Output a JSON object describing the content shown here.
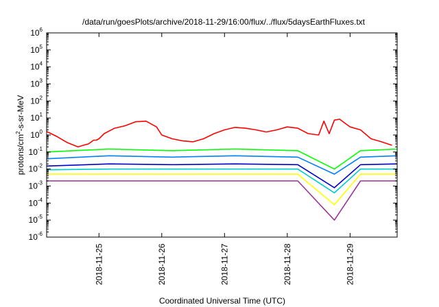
{
  "chart_data": {
    "type": "line",
    "title": "/data/run/goesPlots/archive/2018-11-29/16:00/flux/../flux/5daysEarthFluxes.txt",
    "xlabel": "Coordinated Universal Time (UTC)",
    "ylabel": {
      "prefix": "protons/cm",
      "sup": "2",
      "suffix": "-s-sr-MeV"
    },
    "y_scale": "log",
    "ylim_exponents": [
      -6,
      6
    ],
    "y_ticks": [
      {
        "base": "10",
        "exp": "-6",
        "value": -6
      },
      {
        "base": "10",
        "exp": "-5",
        "value": -5
      },
      {
        "base": "10",
        "exp": "-4",
        "value": -4
      },
      {
        "base": "10",
        "exp": "-3",
        "value": -3
      },
      {
        "base": "10",
        "exp": "-2",
        "value": -2
      },
      {
        "base": "10",
        "exp": "-1",
        "value": -1
      },
      {
        "base": "10",
        "exp": "0",
        "value": 0
      },
      {
        "base": "10",
        "exp": "1",
        "value": 1
      },
      {
        "base": "10",
        "exp": "2",
        "value": 2
      },
      {
        "base": "10",
        "exp": "3",
        "value": 3
      },
      {
        "base": "10",
        "exp": "4",
        "value": 4
      },
      {
        "base": "10",
        "exp": "5",
        "value": 5
      },
      {
        "base": "10",
        "exp": "6",
        "value": 6
      }
    ],
    "xlim": [
      "2018-11-24T04:00",
      "2018-11-29T18:00"
    ],
    "x_ticks": [
      "2018-11-25",
      "2018-11-26",
      "2018-11-27",
      "2018-11-28",
      "2018-11-29"
    ],
    "grid": false,
    "legend": "none",
    "series": [
      {
        "color": "#ff0000",
        "points": [
          [
            "2018-11-24T04:00",
            1.6
          ],
          [
            "2018-11-24T08:00",
            0.8
          ],
          [
            "2018-11-24T12:00",
            0.35
          ],
          [
            "2018-11-24T16:00",
            0.2
          ],
          [
            "2018-11-24T20:00",
            0.3
          ],
          [
            "2018-11-25T00:00",
            0.6
          ],
          [
            "2018-11-24T23:00",
            0.5
          ],
          [
            "2018-11-24T18:00",
            0.25
          ],
          [
            "2018-11-24T22:00",
            0.5
          ],
          [
            "2018-11-25T02:00",
            1.2
          ],
          [
            "2018-11-25T06:00",
            2.5
          ],
          [
            "2018-11-25T10:00",
            3.5
          ],
          [
            "2018-11-25T14:00",
            6.0
          ],
          [
            "2018-11-25T18:00",
            6.5
          ],
          [
            "2018-11-25T22:00",
            3.0
          ],
          [
            "2018-11-26T00:00",
            1.0
          ],
          [
            "2018-11-26T04:00",
            0.6
          ],
          [
            "2018-11-26T08:00",
            0.45
          ],
          [
            "2018-11-26T12:00",
            0.4
          ],
          [
            "2018-11-26T16:00",
            0.6
          ],
          [
            "2018-11-26T20:00",
            1.2
          ],
          [
            "2018-11-27T00:00",
            2.0
          ],
          [
            "2018-11-27T04:00",
            2.8
          ],
          [
            "2018-11-27T08:00",
            2.5
          ],
          [
            "2018-11-27T12:00",
            2.0
          ],
          [
            "2018-11-27T16:00",
            1.5
          ],
          [
            "2018-11-27T20:00",
            2.0
          ],
          [
            "2018-11-28T00:00",
            3.0
          ],
          [
            "2018-11-28T04:00",
            2.5
          ],
          [
            "2018-11-28T08:00",
            1.2
          ],
          [
            "2018-11-28T12:00",
            1.0
          ],
          [
            "2018-11-28T14:00",
            6.5
          ],
          [
            "2018-11-28T16:00",
            1.2
          ],
          [
            "2018-11-28T18:00",
            7.5
          ],
          [
            "2018-11-28T20:00",
            8.5
          ],
          [
            "2018-11-28T22:00",
            5.0
          ],
          [
            "2018-11-29T00:00",
            3.0
          ],
          [
            "2018-11-29T04:00",
            2.0
          ],
          [
            "2018-11-29T08:00",
            0.6
          ],
          [
            "2018-11-29T12:00",
            0.4
          ],
          [
            "2018-11-29T16:00",
            0.25
          ]
        ]
      },
      {
        "color": "#00ff00",
        "points": [
          [
            "2018-11-24T04:00",
            0.1
          ],
          [
            "2018-11-25T04:00",
            0.15
          ],
          [
            "2018-11-26T04:00",
            0.12
          ],
          [
            "2018-11-27T04:00",
            0.15
          ],
          [
            "2018-11-28T04:00",
            0.12
          ],
          [
            "2018-11-28T18:00",
            0.01
          ],
          [
            "2018-11-29T04:00",
            0.12
          ],
          [
            "2018-11-29T18:00",
            0.15
          ]
        ]
      },
      {
        "color": "#0080ff",
        "points": [
          [
            "2018-11-24T04:00",
            0.04
          ],
          [
            "2018-11-25T04:00",
            0.06
          ],
          [
            "2018-11-26T04:00",
            0.05
          ],
          [
            "2018-11-27T04:00",
            0.06
          ],
          [
            "2018-11-28T04:00",
            0.05
          ],
          [
            "2018-11-28T18:00",
            0.005
          ],
          [
            "2018-11-29T04:00",
            0.05
          ],
          [
            "2018-11-29T18:00",
            0.06
          ]
        ]
      },
      {
        "color": "#0000cc",
        "points": [
          [
            "2018-11-24T04:00",
            0.015
          ],
          [
            "2018-11-25T04:00",
            0.02
          ],
          [
            "2018-11-26T04:00",
            0.018
          ],
          [
            "2018-11-27T04:00",
            0.02
          ],
          [
            "2018-11-28T04:00",
            0.018
          ],
          [
            "2018-11-28T18:00",
            0.0008
          ],
          [
            "2018-11-29T04:00",
            0.018
          ],
          [
            "2018-11-29T18:00",
            0.02
          ]
        ]
      },
      {
        "color": "#00cccc",
        "points": [
          [
            "2018-11-24T04:00",
            0.009
          ],
          [
            "2018-11-25T04:00",
            0.01
          ],
          [
            "2018-11-26T04:00",
            0.01
          ],
          [
            "2018-11-27T04:00",
            0.01
          ],
          [
            "2018-11-28T04:00",
            0.01
          ],
          [
            "2018-11-28T18:00",
            0.0004
          ],
          [
            "2018-11-29T04:00",
            0.01
          ],
          [
            "2018-11-29T18:00",
            0.01
          ]
        ]
      },
      {
        "color": "#ffff00",
        "points": [
          [
            "2018-11-24T04:00",
            0.005
          ],
          [
            "2018-11-25T04:00",
            0.005
          ],
          [
            "2018-11-26T04:00",
            0.005
          ],
          [
            "2018-11-27T04:00",
            0.005
          ],
          [
            "2018-11-28T04:00",
            0.005
          ],
          [
            "2018-11-28T18:00",
            8e-05
          ],
          [
            "2018-11-29T04:00",
            0.005
          ],
          [
            "2018-11-29T18:00",
            0.005
          ]
        ]
      },
      {
        "color": "#993399",
        "points": [
          [
            "2018-11-24T04:00",
            0.002
          ],
          [
            "2018-11-25T04:00",
            0.002
          ],
          [
            "2018-11-26T04:00",
            0.002
          ],
          [
            "2018-11-27T04:00",
            0.002
          ],
          [
            "2018-11-28T04:00",
            0.002
          ],
          [
            "2018-11-28T18:00",
            1e-05
          ],
          [
            "2018-11-29T04:00",
            0.002
          ],
          [
            "2018-11-29T18:00",
            0.002
          ]
        ]
      }
    ]
  }
}
